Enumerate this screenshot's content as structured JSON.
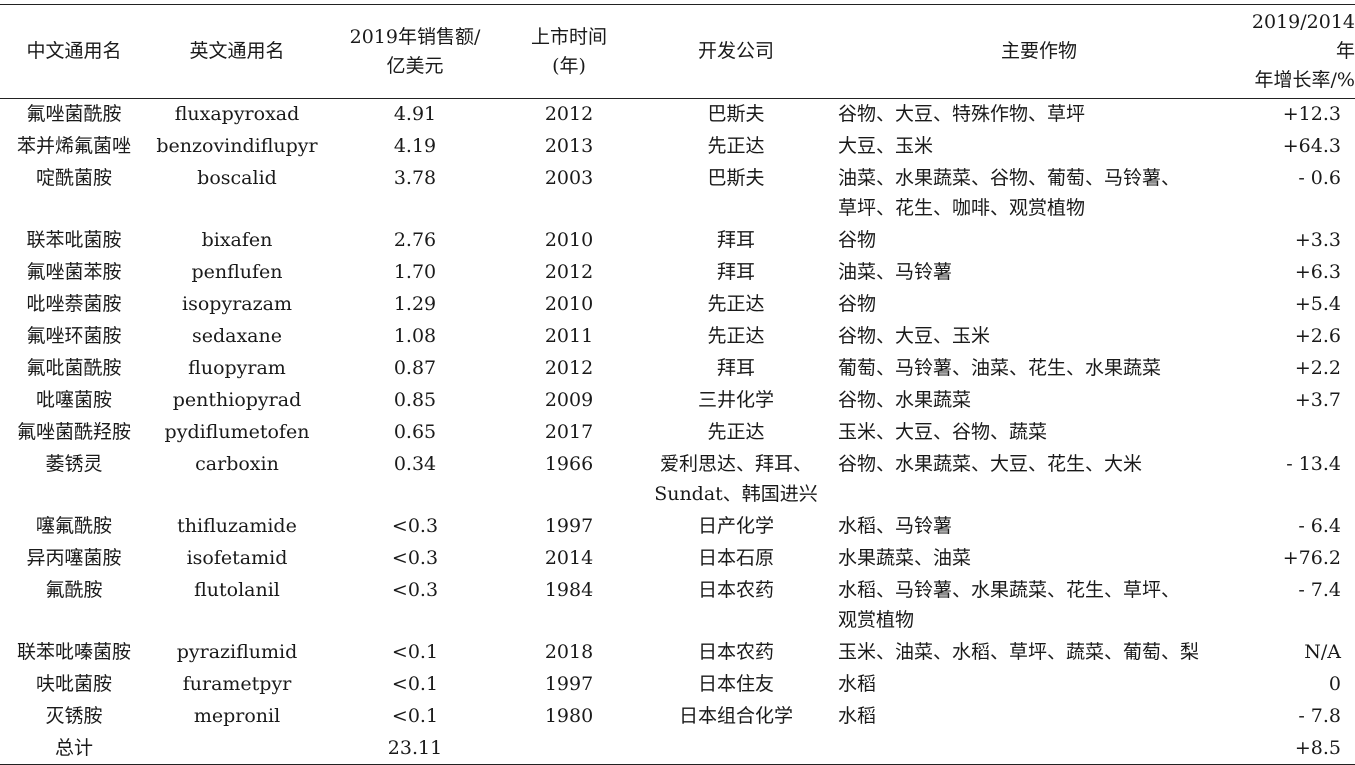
{
  "table": {
    "headers": [
      [
        "中文通用名"
      ],
      [
        "英文通用名"
      ],
      [
        "2019年销售额/",
        "亿美元"
      ],
      [
        "上市时间",
        "(年)"
      ],
      [
        "开发公司"
      ],
      [
        "主要作物"
      ],
      [
        "2019/2014年",
        "年增长率/%"
      ]
    ],
    "rows": [
      {
        "cn": "氟唑菌酰胺",
        "en": "fluxapyroxad",
        "sales": "4.91",
        "year": "2012",
        "company": [
          "巴斯夫"
        ],
        "crops": [
          "谷物、大豆、特殊作物、草坪"
        ],
        "growth": "+12.3"
      },
      {
        "cn": "苯并烯氟菌唑",
        "en": "benzovindiflupyr",
        "sales": "4.19",
        "year": "2013",
        "company": [
          "先正达"
        ],
        "crops": [
          "大豆、玉米"
        ],
        "growth": "+64.3"
      },
      {
        "cn": "啶酰菌胺",
        "en": "boscalid",
        "sales": "3.78",
        "year": "2003",
        "company": [
          "巴斯夫"
        ],
        "crops": [
          "油菜、水果蔬菜、谷物、葡萄、马铃薯、",
          "草坪、花生、咖啡、观赏植物"
        ],
        "growth": "- 0.6"
      },
      {
        "cn": "联苯吡菌胺",
        "en": "bixafen",
        "sales": "2.76",
        "year": "2010",
        "company": [
          "拜耳"
        ],
        "crops": [
          "谷物"
        ],
        "growth": "+3.3"
      },
      {
        "cn": "氟唑菌苯胺",
        "en": "penflufen",
        "sales": "1.70",
        "year": "2012",
        "company": [
          "拜耳"
        ],
        "crops": [
          "油菜、马铃薯"
        ],
        "growth": "+6.3"
      },
      {
        "cn": "吡唑萘菌胺",
        "en": "isopyrazam",
        "sales": "1.29",
        "year": "2010",
        "company": [
          "先正达"
        ],
        "crops": [
          "谷物"
        ],
        "growth": "+5.4"
      },
      {
        "cn": "氟唑环菌胺",
        "en": "sedaxane",
        "sales": "1.08",
        "year": "2011",
        "company": [
          "先正达"
        ],
        "crops": [
          "谷物、大豆、玉米"
        ],
        "growth": "+2.6"
      },
      {
        "cn": "氟吡菌酰胺",
        "en": "fluopyram",
        "sales": "0.87",
        "year": "2012",
        "company": [
          "拜耳"
        ],
        "crops": [
          "葡萄、马铃薯、油菜、花生、水果蔬菜"
        ],
        "growth": "+2.2"
      },
      {
        "cn": "吡噻菌胺",
        "en": "penthiopyrad",
        "sales": "0.85",
        "year": "2009",
        "company": [
          "三井化学"
        ],
        "crops": [
          "谷物、水果蔬菜"
        ],
        "growth": "+3.7"
      },
      {
        "cn": "氟唑菌酰羟胺",
        "en": "pydiflumetofen",
        "sales": "0.65",
        "year": "2017",
        "company": [
          "先正达"
        ],
        "crops": [
          "玉米、大豆、谷物、蔬菜"
        ],
        "growth": ""
      },
      {
        "cn": "萎锈灵",
        "en": "carboxin",
        "sales": "0.34",
        "year": "1966",
        "company": [
          "爱利思达、拜耳、",
          "Sundat、韩国进兴"
        ],
        "crops": [
          "谷物、水果蔬菜、大豆、花生、大米"
        ],
        "growth": "- 13.4"
      },
      {
        "cn": "噻氟酰胺",
        "en": "thifluzamide",
        "sales": "<0.3",
        "year": "1997",
        "company": [
          "日产化学"
        ],
        "crops": [
          "水稻、马铃薯"
        ],
        "growth": "- 6.4"
      },
      {
        "cn": "异丙噻菌胺",
        "en": "isofetamid",
        "sales": "<0.3",
        "year": "2014",
        "company": [
          "日本石原"
        ],
        "crops": [
          "水果蔬菜、油菜"
        ],
        "growth": "+76.2"
      },
      {
        "cn": "氟酰胺",
        "en": "flutolanil",
        "sales": "<0.3",
        "year": "1984",
        "company": [
          "日本农药"
        ],
        "crops": [
          "水稻、马铃薯、水果蔬菜、花生、草坪、",
          "观赏植物"
        ],
        "growth": "- 7.4"
      },
      {
        "cn": "联苯吡嗪菌胺",
        "en": "pyraziflumid",
        "sales": "<0.1",
        "year": "2018",
        "company": [
          "日本农药"
        ],
        "crops": [
          "玉米、油菜、水稻、草坪、蔬菜、葡萄、梨"
        ],
        "growth": "N/A"
      },
      {
        "cn": "呋吡菌胺",
        "en": "furametpyr",
        "sales": "<0.1",
        "year": "1997",
        "company": [
          "日本住友"
        ],
        "crops": [
          "水稻"
        ],
        "growth": "0"
      },
      {
        "cn": "灭锈胺",
        "en": "mepronil",
        "sales": "<0.1",
        "year": "1980",
        "company": [
          "日本组合化学"
        ],
        "crops": [
          "水稻"
        ],
        "growth": "- 7.8"
      }
    ],
    "total": {
      "label": "总计",
      "sales": "23.11",
      "growth": "+8.5"
    }
  }
}
